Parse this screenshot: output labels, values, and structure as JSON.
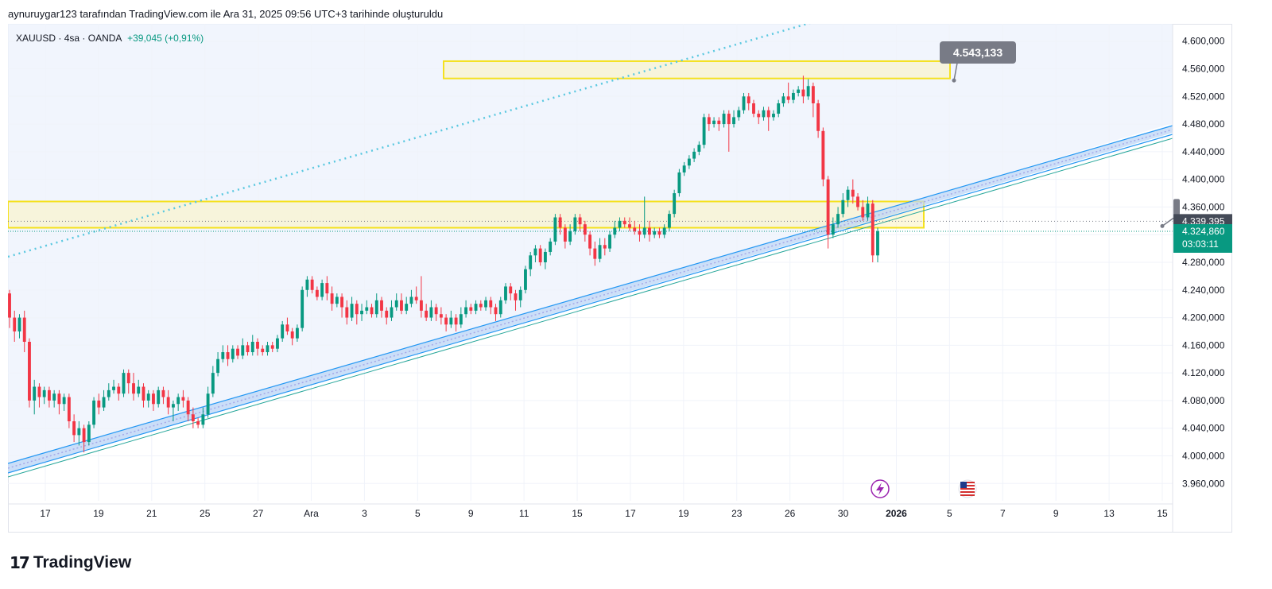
{
  "header": {
    "snapshot_text": "aynuruygar123 tarafından TradingView.com ile Ara 31, 2025 09:56 UTC+3 tarihinde oluşturuldu"
  },
  "legend": {
    "symbol": "XAUUSD",
    "interval": "4sa",
    "broker": "OANDA",
    "change": "+39,045 (+0,91%)"
  },
  "footer": {
    "brand": "TradingView",
    "mark": "17"
  },
  "colors": {
    "up": "#089981",
    "down": "#f23645",
    "zone": "#f5e11e",
    "channel": "#2196f3",
    "dotted": "#5ac8e0",
    "price_label_bg": "#089981",
    "pinned_label_bg": "#787b86"
  },
  "chart_data": {
    "type": "candlestick",
    "x_tick_labels": [
      "17",
      "19",
      "21",
      "25",
      "27",
      "Ara",
      "3",
      "5",
      "9",
      "11",
      "15",
      "17",
      "19",
      "23",
      "26",
      "30",
      "2026",
      "5",
      "7",
      "9",
      "13",
      "15"
    ],
    "y_ticks": [
      3960000,
      4000000,
      4040000,
      4080000,
      4120000,
      4160000,
      4200000,
      4240000,
      4280000,
      4320000,
      4360000,
      4400000,
      4440000,
      4480000,
      4520000,
      4560000,
      4600000
    ],
    "y_tick_labels": [
      "3.960,000",
      "4.000,000",
      "4.040,000",
      "4.080,000",
      "4.120,000",
      "4.160,000",
      "4.200,000",
      "4.240,000",
      "4.280,000",
      "4.320,000",
      "4.360,000",
      "4.400,000",
      "4.440,000",
      "4.480,000",
      "4.520,000",
      "4.560,000",
      "4.600,000"
    ],
    "ylim": [
      3935000,
      4625000
    ],
    "candles": [
      [
        4235,
        4200,
        4240,
        4185
      ],
      [
        4200,
        4180,
        4210,
        4165
      ],
      [
        4180,
        4200,
        4205,
        4170
      ],
      [
        4200,
        4165,
        4210,
        4150
      ],
      [
        4165,
        4080,
        4170,
        4070
      ],
      [
        4080,
        4100,
        4110,
        4060
      ],
      [
        4100,
        4085,
        4105,
        4070
      ],
      [
        4085,
        4095,
        4100,
        4075
      ],
      [
        4095,
        4080,
        4100,
        4070
      ],
      [
        4080,
        4090,
        4095,
        4070
      ],
      [
        4090,
        4075,
        4095,
        4060
      ],
      [
        4075,
        4085,
        4090,
        4065
      ],
      [
        4085,
        4050,
        4090,
        4040
      ],
      [
        4050,
        4030,
        4060,
        4020
      ],
      [
        4030,
        4040,
        4050,
        4015
      ],
      [
        4040,
        4020,
        4045,
        4005
      ],
      [
        4020,
        4045,
        4050,
        4015
      ],
      [
        4045,
        4080,
        4085,
        4040
      ],
      [
        4080,
        4070,
        4090,
        4060
      ],
      [
        4070,
        4085,
        4095,
        4065
      ],
      [
        4085,
        4095,
        4105,
        4080
      ],
      [
        4095,
        4100,
        4110,
        4090
      ],
      [
        4100,
        4090,
        4105,
        4080
      ],
      [
        4090,
        4120,
        4125,
        4085
      ],
      [
        4120,
        4105,
        4125,
        4090
      ],
      [
        4105,
        4090,
        4120,
        4080
      ],
      [
        4090,
        4100,
        4110,
        4085
      ],
      [
        4100,
        4080,
        4105,
        4070
      ],
      [
        4080,
        4090,
        4095,
        4070
      ],
      [
        4090,
        4075,
        4095,
        4065
      ],
      [
        4075,
        4095,
        4100,
        4070
      ],
      [
        4095,
        4085,
        4100,
        4075
      ],
      [
        4085,
        4070,
        4095,
        4060
      ],
      [
        4070,
        4075,
        4080,
        4050
      ],
      [
        4075,
        4085,
        4090,
        4065
      ],
      [
        4085,
        4080,
        4095,
        4070
      ],
      [
        4080,
        4060,
        4085,
        4050
      ],
      [
        4060,
        4050,
        4070,
        4040
      ],
      [
        4050,
        4045,
        4055,
        4040
      ],
      [
        4045,
        4060,
        4070,
        4040
      ],
      [
        4060,
        4090,
        4100,
        4055
      ],
      [
        4090,
        4120,
        4130,
        4085
      ],
      [
        4120,
        4140,
        4150,
        4115
      ],
      [
        4140,
        4150,
        4160,
        4135
      ],
      [
        4150,
        4140,
        4160,
        4130
      ],
      [
        4140,
        4155,
        4160,
        4135
      ],
      [
        4155,
        4145,
        4160,
        4140
      ],
      [
        4145,
        4160,
        4170,
        4140
      ],
      [
        4160,
        4150,
        4165,
        4145
      ],
      [
        4150,
        4165,
        4175,
        4145
      ],
      [
        4165,
        4155,
        4170,
        4145
      ],
      [
        4155,
        4150,
        4160,
        4145
      ],
      [
        4150,
        4160,
        4165,
        4145
      ],
      [
        4160,
        4155,
        4165,
        4150
      ],
      [
        4155,
        4170,
        4175,
        4150
      ],
      [
        4170,
        4190,
        4195,
        4165
      ],
      [
        4190,
        4180,
        4200,
        4175
      ],
      [
        4180,
        4170,
        4185,
        4160
      ],
      [
        4170,
        4185,
        4190,
        4165
      ],
      [
        4185,
        4240,
        4245,
        4180
      ],
      [
        4240,
        4255,
        4260,
        4230
      ],
      [
        4255,
        4240,
        4260,
        4235
      ],
      [
        4240,
        4230,
        4245,
        4225
      ],
      [
        4230,
        4250,
        4255,
        4225
      ],
      [
        4250,
        4235,
        4260,
        4225
      ],
      [
        4235,
        4220,
        4245,
        4210
      ],
      [
        4220,
        4230,
        4235,
        4215
      ],
      [
        4230,
        4215,
        4235,
        4200
      ],
      [
        4215,
        4200,
        4225,
        4190
      ],
      [
        4200,
        4220,
        4230,
        4195
      ],
      [
        4220,
        4205,
        4225,
        4190
      ],
      [
        4205,
        4210,
        4220,
        4195
      ],
      [
        4210,
        4215,
        4225,
        4205
      ],
      [
        4215,
        4205,
        4220,
        4200
      ],
      [
        4205,
        4225,
        4235,
        4200
      ],
      [
        4225,
        4210,
        4230,
        4200
      ],
      [
        4210,
        4200,
        4215,
        4190
      ],
      [
        4200,
        4215,
        4225,
        4195
      ],
      [
        4215,
        4225,
        4235,
        4210
      ],
      [
        4225,
        4210,
        4235,
        4205
      ],
      [
        4210,
        4220,
        4230,
        4205
      ],
      [
        4220,
        4230,
        4240,
        4215
      ],
      [
        4230,
        4225,
        4245,
        4220
      ],
      [
        4225,
        4210,
        4260,
        4200
      ],
      [
        4210,
        4200,
        4220,
        4195
      ],
      [
        4200,
        4215,
        4225,
        4195
      ],
      [
        4215,
        4205,
        4220,
        4195
      ],
      [
        4205,
        4200,
        4215,
        4190
      ],
      [
        4200,
        4190,
        4205,
        4180
      ],
      [
        4190,
        4200,
        4210,
        4185
      ],
      [
        4200,
        4190,
        4205,
        4180
      ],
      [
        4190,
        4205,
        4215,
        4185
      ],
      [
        4205,
        4215,
        4225,
        4200
      ],
      [
        4215,
        4210,
        4220,
        4205
      ],
      [
        4210,
        4220,
        4225,
        4205
      ],
      [
        4220,
        4215,
        4225,
        4210
      ],
      [
        4215,
        4225,
        4230,
        4210
      ],
      [
        4225,
        4215,
        4230,
        4205
      ],
      [
        4215,
        4205,
        4220,
        4195
      ],
      [
        4205,
        4225,
        4230,
        4200
      ],
      [
        4225,
        4245,
        4250,
        4220
      ],
      [
        4245,
        4235,
        4250,
        4225
      ],
      [
        4235,
        4225,
        4240,
        4210
      ],
      [
        4225,
        4240,
        4245,
        4215
      ],
      [
        4240,
        4270,
        4275,
        4235
      ],
      [
        4270,
        4290,
        4295,
        4260
      ],
      [
        4290,
        4300,
        4305,
        4280
      ],
      [
        4300,
        4280,
        4305,
        4275
      ],
      [
        4280,
        4295,
        4300,
        4270
      ],
      [
        4295,
        4310,
        4315,
        4290
      ],
      [
        4310,
        4345,
        4350,
        4305
      ],
      [
        4345,
        4330,
        4350,
        4320
      ],
      [
        4330,
        4310,
        4335,
        4300
      ],
      [
        4310,
        4325,
        4335,
        4305
      ],
      [
        4325,
        4345,
        4350,
        4320
      ],
      [
        4345,
        4335,
        4350,
        4325
      ],
      [
        4335,
        4320,
        4340,
        4310
      ],
      [
        4320,
        4300,
        4325,
        4290
      ],
      [
        4300,
        4285,
        4310,
        4275
      ],
      [
        4285,
        4305,
        4315,
        4280
      ],
      [
        4305,
        4300,
        4315,
        4290
      ],
      [
        4300,
        4320,
        4325,
        4295
      ],
      [
        4320,
        4330,
        4340,
        4315
      ],
      [
        4330,
        4340,
        4345,
        4325
      ],
      [
        4340,
        4335,
        4345,
        4330
      ],
      [
        4335,
        4330,
        4345,
        4325
      ],
      [
        4330,
        4325,
        4340,
        4320
      ],
      [
        4325,
        4320,
        4335,
        4310
      ],
      [
        4320,
        4330,
        4375,
        4315
      ],
      [
        4330,
        4320,
        4340,
        4310
      ],
      [
        4320,
        4325,
        4330,
        4315
      ],
      [
        4325,
        4320,
        4330,
        4315
      ],
      [
        4320,
        4330,
        4335,
        4315
      ],
      [
        4330,
        4350,
        4355,
        4325
      ],
      [
        4350,
        4380,
        4385,
        4345
      ],
      [
        4380,
        4410,
        4415,
        4375
      ],
      [
        4410,
        4420,
        4425,
        4405
      ],
      [
        4420,
        4430,
        4435,
        4415
      ],
      [
        4430,
        4440,
        4445,
        4425
      ],
      [
        4440,
        4450,
        4455,
        4435
      ],
      [
        4450,
        4490,
        4495,
        4445
      ],
      [
        4490,
        4480,
        4495,
        4470
      ],
      [
        4480,
        4485,
        4490,
        4475
      ],
      [
        4485,
        4480,
        4490,
        4470
      ],
      [
        4480,
        4495,
        4500,
        4475
      ],
      [
        4495,
        4480,
        4500,
        4440
      ],
      [
        4480,
        4490,
        4500,
        4475
      ],
      [
        4490,
        4500,
        4505,
        4485
      ],
      [
        4500,
        4520,
        4525,
        4495
      ],
      [
        4520,
        4510,
        4525,
        4500
      ],
      [
        4510,
        4495,
        4515,
        4490
      ],
      [
        4495,
        4490,
        4500,
        4480
      ],
      [
        4490,
        4500,
        4505,
        4485
      ],
      [
        4500,
        4490,
        4505,
        4470
      ],
      [
        4490,
        4495,
        4500,
        4485
      ],
      [
        4495,
        4510,
        4515,
        4490
      ],
      [
        4510,
        4520,
        4525,
        4505
      ],
      [
        4520,
        4515,
        4540,
        4510
      ],
      [
        4515,
        4525,
        4530,
        4510
      ],
      [
        4525,
        4530,
        4535,
        4520
      ],
      [
        4530,
        4520,
        4550,
        4510
      ],
      [
        4520,
        4535,
        4545,
        4515
      ],
      [
        4535,
        4510,
        4540,
        4490
      ],
      [
        4510,
        4470,
        4515,
        4460
      ],
      [
        4470,
        4400,
        4475,
        4390
      ],
      [
        4400,
        4320,
        4405,
        4300
      ],
      [
        4320,
        4335,
        4345,
        4315
      ],
      [
        4335,
        4350,
        4360,
        4330
      ],
      [
        4350,
        4370,
        4380,
        4345
      ],
      [
        4370,
        4385,
        4390,
        4360
      ],
      [
        4385,
        4375,
        4400,
        4365
      ],
      [
        4375,
        4360,
        4380,
        4355
      ],
      [
        4360,
        4345,
        4370,
        4340
      ],
      [
        4345,
        4365,
        4375,
        4340
      ],
      [
        4365,
        4290,
        4370,
        4280
      ],
      [
        4290,
        4325,
        4330,
        4280
      ]
    ],
    "zones": [
      {
        "top": 4571000,
        "bottom": 4546000
      },
      {
        "top": 4368000,
        "bottom": 4330000
      }
    ],
    "pinned_label": "4.543,133",
    "last_price": "4.324,860",
    "countdown": "03:03:11",
    "crosshair_price": "4.339,395"
  }
}
